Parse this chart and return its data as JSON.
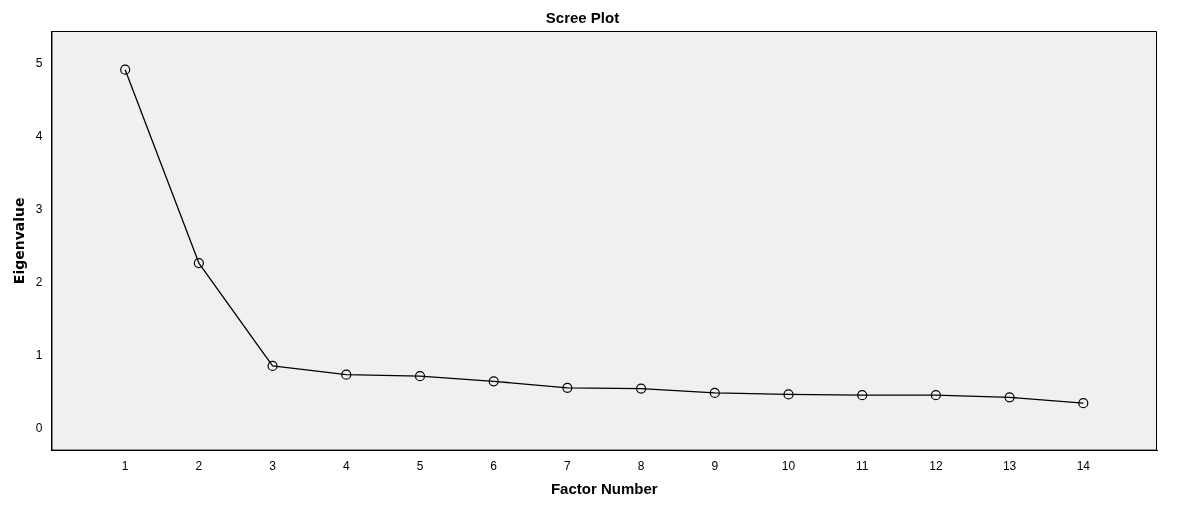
{
  "chart_data": {
    "type": "line",
    "title": "Scree Plot",
    "xlabel": "Factor Number",
    "ylabel": "Eigenvalue",
    "x": [
      1,
      2,
      3,
      4,
      5,
      6,
      7,
      8,
      9,
      10,
      11,
      12,
      13,
      14
    ],
    "series": [
      {
        "color": "#000000",
        "values": [
          4.92,
          2.27,
          0.86,
          0.74,
          0.72,
          0.65,
          0.56,
          0.55,
          0.49,
          0.47,
          0.46,
          0.46,
          0.43,
          0.35
        ]
      }
    ],
    "xlim": [
      0,
      15
    ],
    "xticks": [
      1,
      2,
      3,
      4,
      5,
      6,
      7,
      8,
      9,
      10,
      11,
      12,
      13,
      14
    ],
    "ylim": [
      -0.3,
      5.45
    ],
    "yticks": [
      0,
      1,
      2,
      3,
      4,
      5
    ],
    "grid": false,
    "legend": false,
    "marker": "circle",
    "line_style": "solid"
  }
}
